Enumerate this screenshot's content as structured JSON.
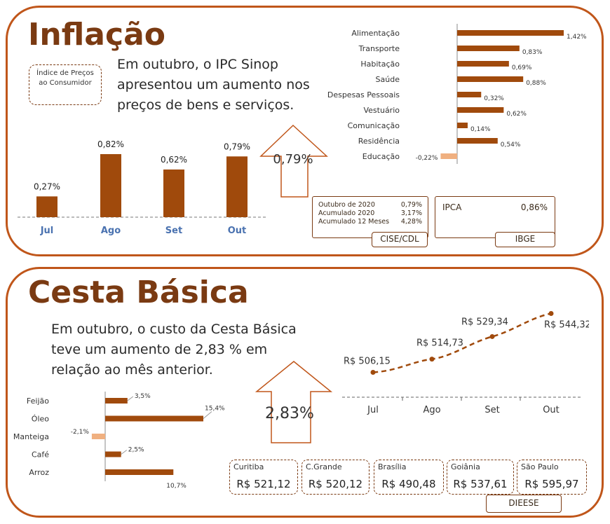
{
  "inflacao": {
    "title": "Inflação",
    "indice_box": "Índice de Preços ao Consumidor",
    "text_lines": [
      "Em outubro, o IPC Sinop",
      "apresentou um aumento  nos",
      "preços de bens e serviços."
    ],
    "arrow_value": "0,79%",
    "cise_box": {
      "rows": [
        {
          "label": "Outubro  de 2020",
          "value": "0,79%"
        },
        {
          "label": "Acumulado 2020",
          "value": "3,17%"
        },
        {
          "label": "Acumulado 12 Meses",
          "value": "4,28%"
        }
      ],
      "source": "CISE/CDL"
    },
    "ipca_box": {
      "label": "IPCA",
      "value": "0,86%",
      "source": "IBGE"
    }
  },
  "cesta": {
    "title": "Cesta Básica",
    "text_lines": [
      "Em outubro, o custo da Cesta Básica",
      "teve um aumento de 2,83 %  em",
      "relação ao mês anterior."
    ],
    "arrow_value": "2,83%",
    "cities": [
      {
        "name": "Curitiba",
        "value": "R$ 521,12"
      },
      {
        "name": "C.Grande",
        "value": "R$ 520,12"
      },
      {
        "name": "Brasília",
        "value": "R$ 490,48"
      },
      {
        "name": "Goiânia",
        "value": "R$ 537,61"
      },
      {
        "name": "São Paulo",
        "value": "R$ 595,97"
      }
    ],
    "source": "DIEESE"
  },
  "colors": {
    "dark": "#a04a0c",
    "light": "#f0b080",
    "border": "#c0561a",
    "axis_blue": "#4a72b0"
  },
  "chart_data": [
    {
      "type": "bar",
      "name": "ipc-monthly",
      "categories": [
        "Jul",
        "Ago",
        "Set",
        "Out"
      ],
      "values": [
        0.27,
        0.82,
        0.62,
        0.79
      ],
      "labels": [
        "0,27%",
        "0,82%",
        "0,62%",
        "0,79%"
      ]
    },
    {
      "type": "bar",
      "orientation": "horizontal",
      "name": "ipc-groups",
      "categories": [
        "Alimentação",
        "Transporte",
        "Habitação",
        "Saúde",
        "Despesas Pessoais",
        "Vestuário",
        "Comunicação",
        "Residência",
        "Educação"
      ],
      "values": [
        1.42,
        0.83,
        0.69,
        0.88,
        0.32,
        0.62,
        0.14,
        0.54,
        -0.22
      ],
      "labels": [
        "1,42%",
        "0,83%",
        "0,69%",
        "0,88%",
        "0,32%",
        "0,62%",
        "0,14%",
        "0,54%",
        "-0,22%"
      ]
    },
    {
      "type": "line",
      "name": "cesta-cost",
      "categories": [
        "Jul",
        "Ago",
        "Set",
        "Out"
      ],
      "values": [
        506.15,
        514.73,
        529.34,
        544.32
      ],
      "labels": [
        "R$ 506,15",
        "R$ 514,73",
        "R$ 529,34",
        "R$ 544,32"
      ]
    },
    {
      "type": "bar",
      "orientation": "horizontal",
      "name": "cesta-items",
      "categories": [
        "Feijão",
        "Óleo",
        "Manteiga",
        "Café",
        "Arroz"
      ],
      "values": [
        3.5,
        15.4,
        -2.1,
        2.5,
        10.7
      ],
      "labels": [
        "3,5%",
        "15,4%",
        "-2,1%",
        "2,5%",
        "10,7%"
      ]
    }
  ]
}
